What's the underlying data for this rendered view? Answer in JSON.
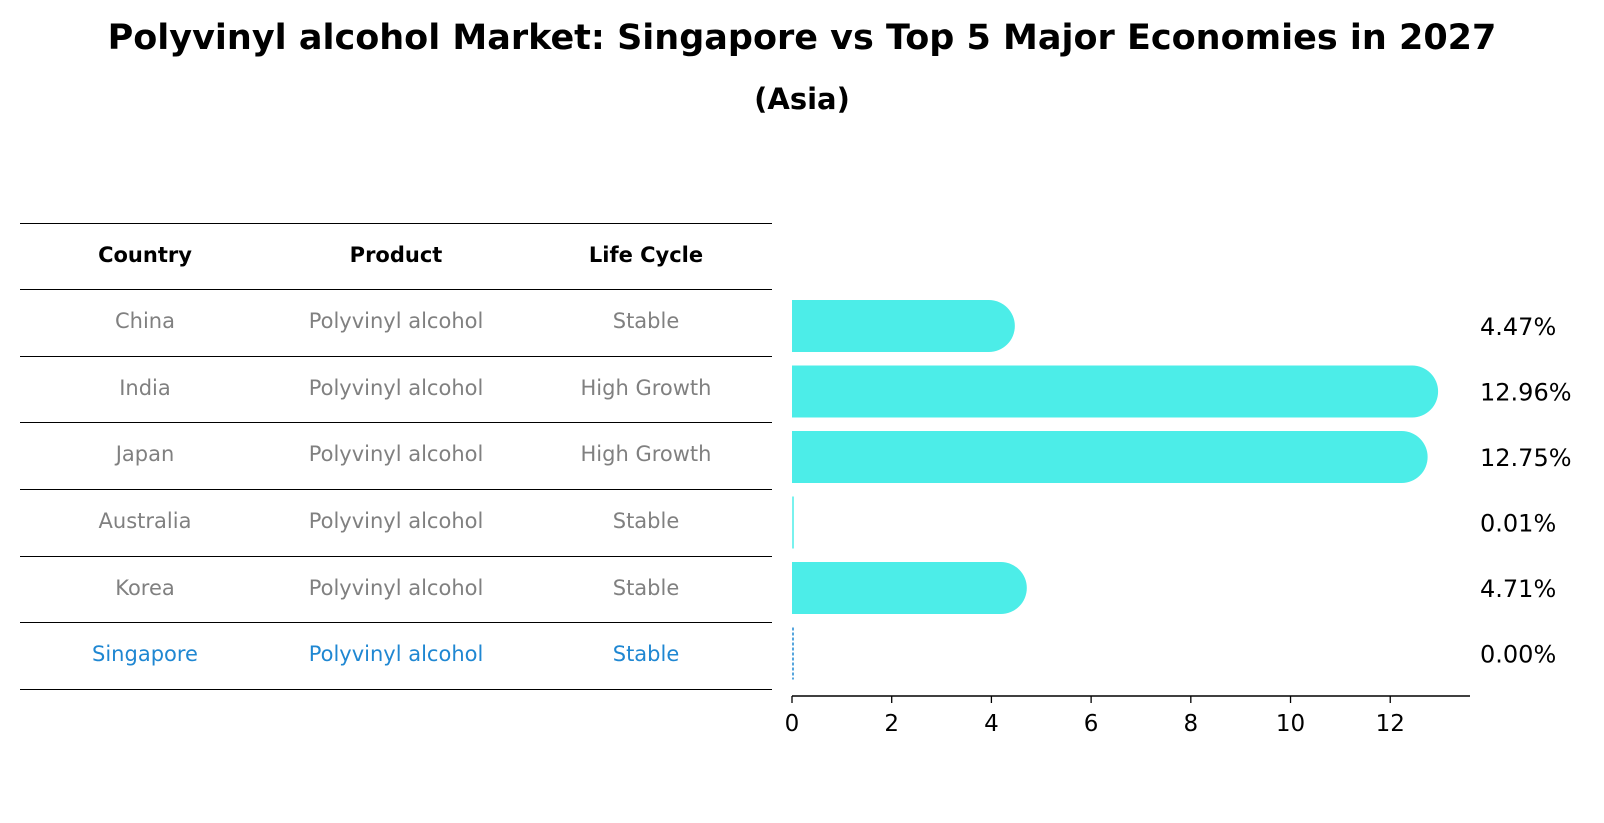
{
  "title": "Polyvinyl alcohol Market: Singapore vs Top 5 Major Economies in 2027",
  "subtitle": "(Asia)",
  "table": {
    "headers": [
      "Country",
      "Product",
      "Life Cycle"
    ],
    "rows": [
      {
        "country": "China",
        "product": "Polyvinyl alcohol",
        "life_cycle": "Stable"
      },
      {
        "country": "India",
        "product": "Polyvinyl alcohol",
        "life_cycle": "High Growth"
      },
      {
        "country": "Japan",
        "product": "Polyvinyl alcohol",
        "life_cycle": "High Growth"
      },
      {
        "country": "Australia",
        "product": "Polyvinyl alcohol",
        "life_cycle": "Stable"
      },
      {
        "country": "Korea",
        "product": "Polyvinyl alcohol",
        "life_cycle": "Stable"
      },
      {
        "country": "Singapore",
        "product": "Polyvinyl alcohol",
        "life_cycle": "Stable"
      }
    ],
    "highlight_row": 5
  },
  "chart_data": {
    "type": "bar",
    "orientation": "horizontal",
    "categories": [
      "China",
      "India",
      "Japan",
      "Australia",
      "Korea",
      "Singapore"
    ],
    "values": [
      4.47,
      12.96,
      12.75,
      0.01,
      4.71,
      0.0
    ],
    "value_labels": [
      "4.47%",
      "12.96%",
      "12.75%",
      "0.01%",
      "4.71%",
      "0.00%"
    ],
    "xlim": [
      0,
      13.6
    ],
    "xticks": [
      0,
      2,
      4,
      6,
      8,
      10,
      12
    ],
    "grid": false,
    "bar_color": "#4cede8",
    "highlight_color": "#1f87d2"
  }
}
